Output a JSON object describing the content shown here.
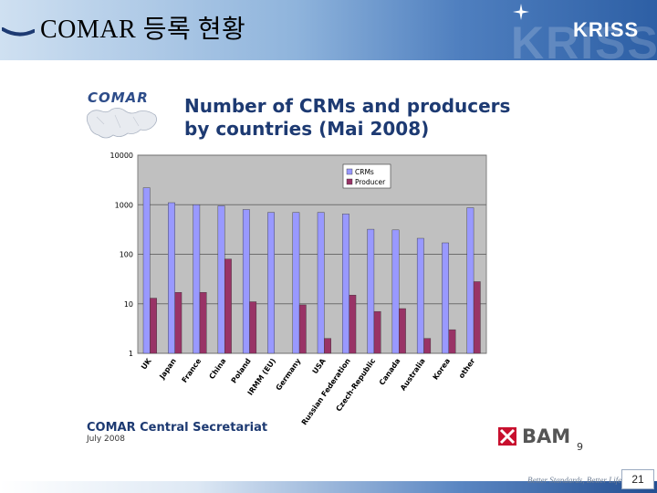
{
  "header": {
    "title": "COMAR 등록 현황",
    "logo_text": "KRISS",
    "background_accent": "#2d5fa5"
  },
  "slide": {
    "comar_logo_text": "COMAR",
    "title_line1": "Number of CRMs and producers",
    "title_line2": "by countries (Mai 2008)",
    "secretariat_word": "COMAR",
    "secretariat_rest": " Central Secretariat",
    "secretariat_date": "July 2008",
    "bam_logo_text": "BAM",
    "inner_page_number": "9",
    "slide_number": "21",
    "footer_slogan": "Better Standards, Better Life"
  },
  "chart_data": {
    "type": "bar",
    "title": "Number of CRMs and producers by countries (Mai 2008)",
    "xlabel": "",
    "ylabel": "",
    "y_scale": "log",
    "ylim": [
      1,
      10000
    ],
    "y_ticks": [
      "1",
      "10",
      "100",
      "1000",
      "10000"
    ],
    "grid": true,
    "legend_position": "top-right",
    "categories": [
      "UK",
      "Japan",
      "France",
      "China",
      "Poland",
      "IRMM (EU)",
      "Germany",
      "USA",
      "Russian Federation",
      "Czech-Republic",
      "Canada",
      "Australia",
      "Korea",
      "other"
    ],
    "series": [
      {
        "name": "CRMs",
        "color": "#9999ff",
        "values": [
          2200,
          1100,
          1000,
          950,
          800,
          700,
          700,
          700,
          650,
          320,
          310,
          210,
          170,
          870
        ]
      },
      {
        "name": "Producer",
        "color": "#993366",
        "values": [
          13,
          17,
          17,
          80,
          11,
          null,
          9.5,
          2,
          15,
          7,
          8,
          2,
          3,
          28
        ]
      }
    ]
  }
}
